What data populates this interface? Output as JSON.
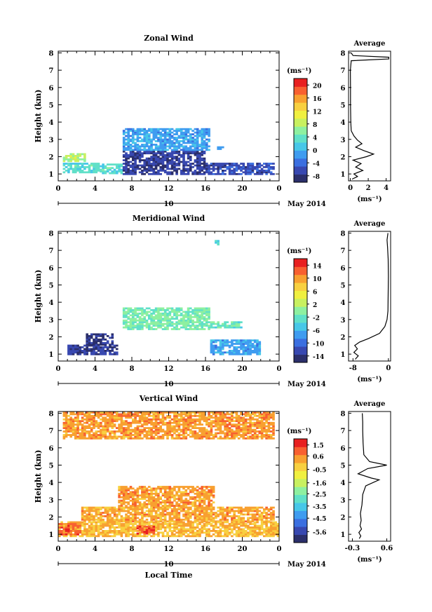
{
  "chart_data": [
    {
      "type": "heatmap",
      "title": "Zonal Wind",
      "ylabel": "Height (km)",
      "xticks": [
        "0",
        "4",
        "8",
        "12",
        "16",
        "20",
        "0"
      ],
      "yticks": [
        "1",
        "2",
        "3",
        "4",
        "5",
        "6",
        "7",
        "8"
      ],
      "xlim": [
        0,
        24
      ],
      "ylim": [
        0.6,
        8.1
      ],
      "date_axis": {
        "day": "10",
        "label": "May 2014"
      },
      "colorbar": {
        "unit": "(ms⁻¹)",
        "ticks": [
          "20",
          "16",
          "12",
          "8",
          "4",
          "0",
          "-4",
          "-8"
        ],
        "range": [
          -10,
          22
        ],
        "colors": [
          "#2b2f6b",
          "#3848b0",
          "#3b6fe0",
          "#3f9cf0",
          "#47c7e8",
          "#60e0c8",
          "#8ef0a0",
          "#c8f060",
          "#f0f040",
          "#f8d040",
          "#f8a030",
          "#f86030",
          "#e82020"
        ]
      },
      "regions": [
        {
          "x": [
            0.5,
            4.5
          ],
          "y": [
            1.05,
            1.65
          ],
          "value": 3
        },
        {
          "x": [
            4.5,
            7.0
          ],
          "y": [
            1.0,
            1.6
          ],
          "value": 3
        },
        {
          "x": [
            0.5,
            3.0
          ],
          "y": [
            1.7,
            2.15
          ],
          "value": 8
        },
        {
          "x": [
            7.0,
            16.0
          ],
          "y": [
            0.95,
            2.3
          ],
          "value": -7
        },
        {
          "x": [
            16.0,
            23.5
          ],
          "y": [
            0.95,
            1.6
          ],
          "value": -6
        },
        {
          "x": [
            7.0,
            16.5
          ],
          "y": [
            2.35,
            3.65
          ],
          "value": -1
        },
        {
          "x": [
            17.0,
            18.0
          ],
          "y": [
            2.4,
            2.6
          ],
          "value": -2
        }
      ],
      "profile": {
        "title": "Average",
        "xlabel": "(ms⁻¹)",
        "xticks": [
          "0",
          "2",
          "4"
        ],
        "xlim": [
          -0.2,
          4.5
        ],
        "points": [
          [
            0.2,
            0.7
          ],
          [
            0.8,
            0.85
          ],
          [
            0.4,
            1.0
          ],
          [
            1.4,
            1.2
          ],
          [
            0.6,
            1.4
          ],
          [
            1.2,
            1.6
          ],
          [
            0.3,
            1.8
          ],
          [
            1.8,
            2.0
          ],
          [
            2.6,
            2.15
          ],
          [
            1.5,
            2.35
          ],
          [
            0.6,
            2.55
          ],
          [
            1.3,
            2.75
          ],
          [
            0.8,
            2.95
          ],
          [
            0.4,
            3.2
          ],
          [
            0.1,
            3.5
          ],
          [
            0.05,
            4.0
          ],
          [
            0.02,
            5.0
          ],
          [
            0.02,
            6.0
          ],
          [
            0.0,
            7.0
          ],
          [
            0.1,
            7.55
          ],
          [
            4.3,
            7.65
          ],
          [
            4.3,
            7.75
          ],
          [
            0.3,
            7.85
          ],
          [
            0.1,
            8.0
          ]
        ]
      }
    },
    {
      "type": "heatmap",
      "title": "Meridional Wind",
      "ylabel": "Height (km)",
      "xticks": [
        "0",
        "4",
        "8",
        "12",
        "16",
        "20",
        "0"
      ],
      "yticks": [
        "1",
        "2",
        "3",
        "4",
        "5",
        "6",
        "7",
        "8"
      ],
      "xlim": [
        0,
        24
      ],
      "ylim": [
        0.6,
        8.1
      ],
      "date_axis": {
        "day": "10",
        "label": "May 2014"
      },
      "colorbar": {
        "unit": "(ms⁻¹)",
        "ticks": [
          "14",
          "10",
          "6",
          "2",
          "-2",
          "-6",
          "-10",
          "-14"
        ],
        "range": [
          -16,
          16
        ],
        "colors": [
          "#2b2f6b",
          "#3848b0",
          "#3b6fe0",
          "#3f9cf0",
          "#47c7e8",
          "#60e0c8",
          "#8ef0a0",
          "#c8f060",
          "#f0f040",
          "#f8d040",
          "#f8a030",
          "#f86030",
          "#e82020"
        ]
      },
      "regions": [
        {
          "x": [
            7.0,
            16.5
          ],
          "y": [
            2.4,
            3.65
          ],
          "value": -1
        },
        {
          "x": [
            16.5,
            20.0
          ],
          "y": [
            2.5,
            2.9
          ],
          "value": -2
        },
        {
          "x": [
            1.0,
            6.5
          ],
          "y": [
            0.95,
            1.5
          ],
          "value": -13
        },
        {
          "x": [
            3.0,
            6.0
          ],
          "y": [
            1.5,
            2.2
          ],
          "value": -14
        },
        {
          "x": [
            16.5,
            22.0
          ],
          "y": [
            0.95,
            1.8
          ],
          "value": -7
        },
        {
          "x": [
            17.0,
            17.5
          ],
          "y": [
            7.3,
            7.5
          ],
          "value": -3
        }
      ],
      "profile": {
        "title": "Average",
        "xlabel": "(ms⁻¹)",
        "xticks": [
          "-8",
          "0"
        ],
        "xlim": [
          -9,
          0.5
        ],
        "points": [
          [
            -7.5,
            0.7
          ],
          [
            -6.8,
            0.9
          ],
          [
            -7.8,
            1.1
          ],
          [
            -7.0,
            1.3
          ],
          [
            -7.6,
            1.5
          ],
          [
            -6.5,
            1.7
          ],
          [
            -4.5,
            1.9
          ],
          [
            -2.0,
            2.2
          ],
          [
            -0.8,
            2.6
          ],
          [
            -0.3,
            3.0
          ],
          [
            -0.1,
            3.5
          ],
          [
            -0.05,
            4.5
          ],
          [
            0.0,
            5.5
          ],
          [
            -0.05,
            6.5
          ],
          [
            -0.2,
            7.2
          ],
          [
            -0.3,
            7.6
          ],
          [
            -0.1,
            8.0
          ]
        ]
      }
    },
    {
      "type": "heatmap",
      "title": "Vertical Wind",
      "xlabel": "Local Time",
      "ylabel": "Height (km)",
      "xticks": [
        "0",
        "4",
        "8",
        "12",
        "16",
        "20",
        "0"
      ],
      "yticks": [
        "1",
        "2",
        "3",
        "4",
        "5",
        "6",
        "7",
        "8"
      ],
      "xlim": [
        0,
        24
      ],
      "ylim": [
        0.6,
        8.1
      ],
      "date_axis": {
        "day": "10",
        "label": "May 2014"
      },
      "colorbar": {
        "unit": "(ms⁻¹)",
        "ticks": [
          "1.5",
          "0.6",
          "-0.5",
          "-1.6",
          "-2.5",
          "-3.5",
          "-4.5",
          "-5.6"
        ],
        "range": [
          -6.5,
          2.0
        ],
        "colors": [
          "#2b2f6b",
          "#3848b0",
          "#3b6fe0",
          "#3f9cf0",
          "#47c7e8",
          "#60e0c8",
          "#8ef0a0",
          "#c8f060",
          "#f0f040",
          "#f8d040",
          "#f8a030",
          "#f86030",
          "#e82020"
        ]
      },
      "regions": [
        {
          "x": [
            0.5,
            23.5
          ],
          "y": [
            6.5,
            8.0
          ],
          "value": 0.4
        },
        {
          "x": [
            6.5,
            17.0
          ],
          "y": [
            2.5,
            3.75
          ],
          "value": 0.4
        },
        {
          "x": [
            2.5,
            23.5
          ],
          "y": [
            1.7,
            2.6
          ],
          "value": 0.3
        },
        {
          "x": [
            0.0,
            24.0
          ],
          "y": [
            0.85,
            1.75
          ],
          "value": 0.0
        },
        {
          "x": [
            0.0,
            2.5
          ],
          "y": [
            0.95,
            1.6
          ],
          "value": 1.0
        },
        {
          "x": [
            8.5,
            10.5
          ],
          "y": [
            1.0,
            1.5
          ],
          "value": 1.2
        }
      ],
      "profile": {
        "title": "Average",
        "xlabel": "(ms⁻¹)",
        "xticks": [
          "-0.3",
          "0.6"
        ],
        "xlim": [
          -0.4,
          0.7
        ],
        "points": [
          [
            -0.12,
            0.75
          ],
          [
            -0.08,
            0.9
          ],
          [
            -0.13,
            1.1
          ],
          [
            -0.06,
            1.3
          ],
          [
            -0.1,
            1.5
          ],
          [
            -0.07,
            1.8
          ],
          [
            -0.09,
            2.2
          ],
          [
            -0.05,
            2.7
          ],
          [
            -0.03,
            3.3
          ],
          [
            0.05,
            3.8
          ],
          [
            0.4,
            4.15
          ],
          [
            0.2,
            4.25
          ],
          [
            -0.15,
            4.5
          ],
          [
            0.1,
            4.8
          ],
          [
            0.6,
            5.0
          ],
          [
            0.15,
            5.2
          ],
          [
            0.0,
            5.6
          ],
          [
            -0.02,
            6.3
          ],
          [
            -0.03,
            7.0
          ],
          [
            -0.03,
            7.5
          ],
          [
            -0.04,
            8.0
          ]
        ]
      }
    }
  ]
}
